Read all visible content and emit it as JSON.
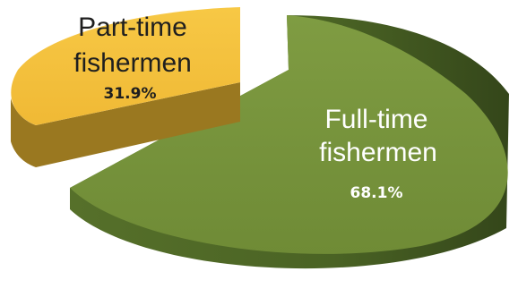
{
  "chart_data": {
    "type": "pie",
    "style": "3d-exploded",
    "title": "",
    "slices": [
      {
        "key": "full_time",
        "label_line1": "Full-time",
        "label_line2": "fishermen",
        "value": 68.1,
        "value_label": "68.1%",
        "top_color": "#77933c",
        "side_color": "#4f6228",
        "label_color": "#ffffff"
      },
      {
        "key": "part_time",
        "label_line1": "Part-time",
        "label_line2": "fishermen",
        "value": 31.9,
        "value_label": "31.9%",
        "top_color": "#f5c242",
        "side_color": "#9c7a1f",
        "label_color": "#1f1f1f"
      }
    ]
  }
}
